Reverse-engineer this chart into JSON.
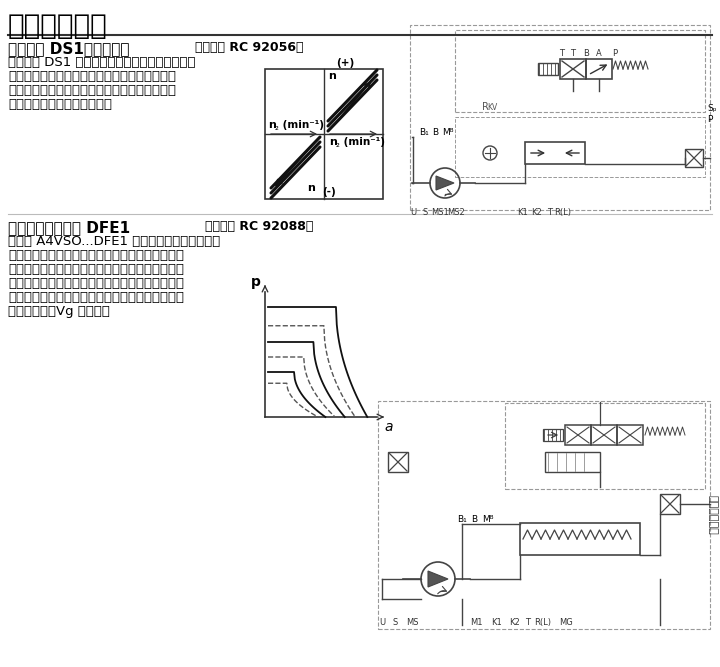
{
  "title": "控制类型汇总",
  "section1_title": "速度控制 DS1，二级控制",
  "section1_ref": "（请参阅 RC 92056）",
  "section1_body": "速度控制 DS1 控制二级单元（马达），以便此电\n机可以提供足够的扭矩来维持所需的输出速度。\n连接到恒定压力系统时，此扭矩与马达排量成比\n例，从而也与摆动角成比例。",
  "section2_title": "电动液压控制系统 DFE1",
  "section2_ref": "（请参阅 RC 92088）",
  "section2_body": "变量泵 A4VSO...DFE1 的功率，压力和摆动角控\n制是通过电动控制比例阀来实现的。比例阀上的电\n流信号可移动控制柱塞并通过集成位置传感器确定\n支架摆动角，进而确定泵排量。当电驱动电机关闭\n且系统没有压力时，控制腔中的偏置弹簧会将泵旋\n至最大排量（Vg 最大）。",
  "bg_color": "#ffffff",
  "text_color": "#000000",
  "title_fontsize": 20,
  "section_title_fontsize": 11,
  "body_fontsize": 9.5
}
